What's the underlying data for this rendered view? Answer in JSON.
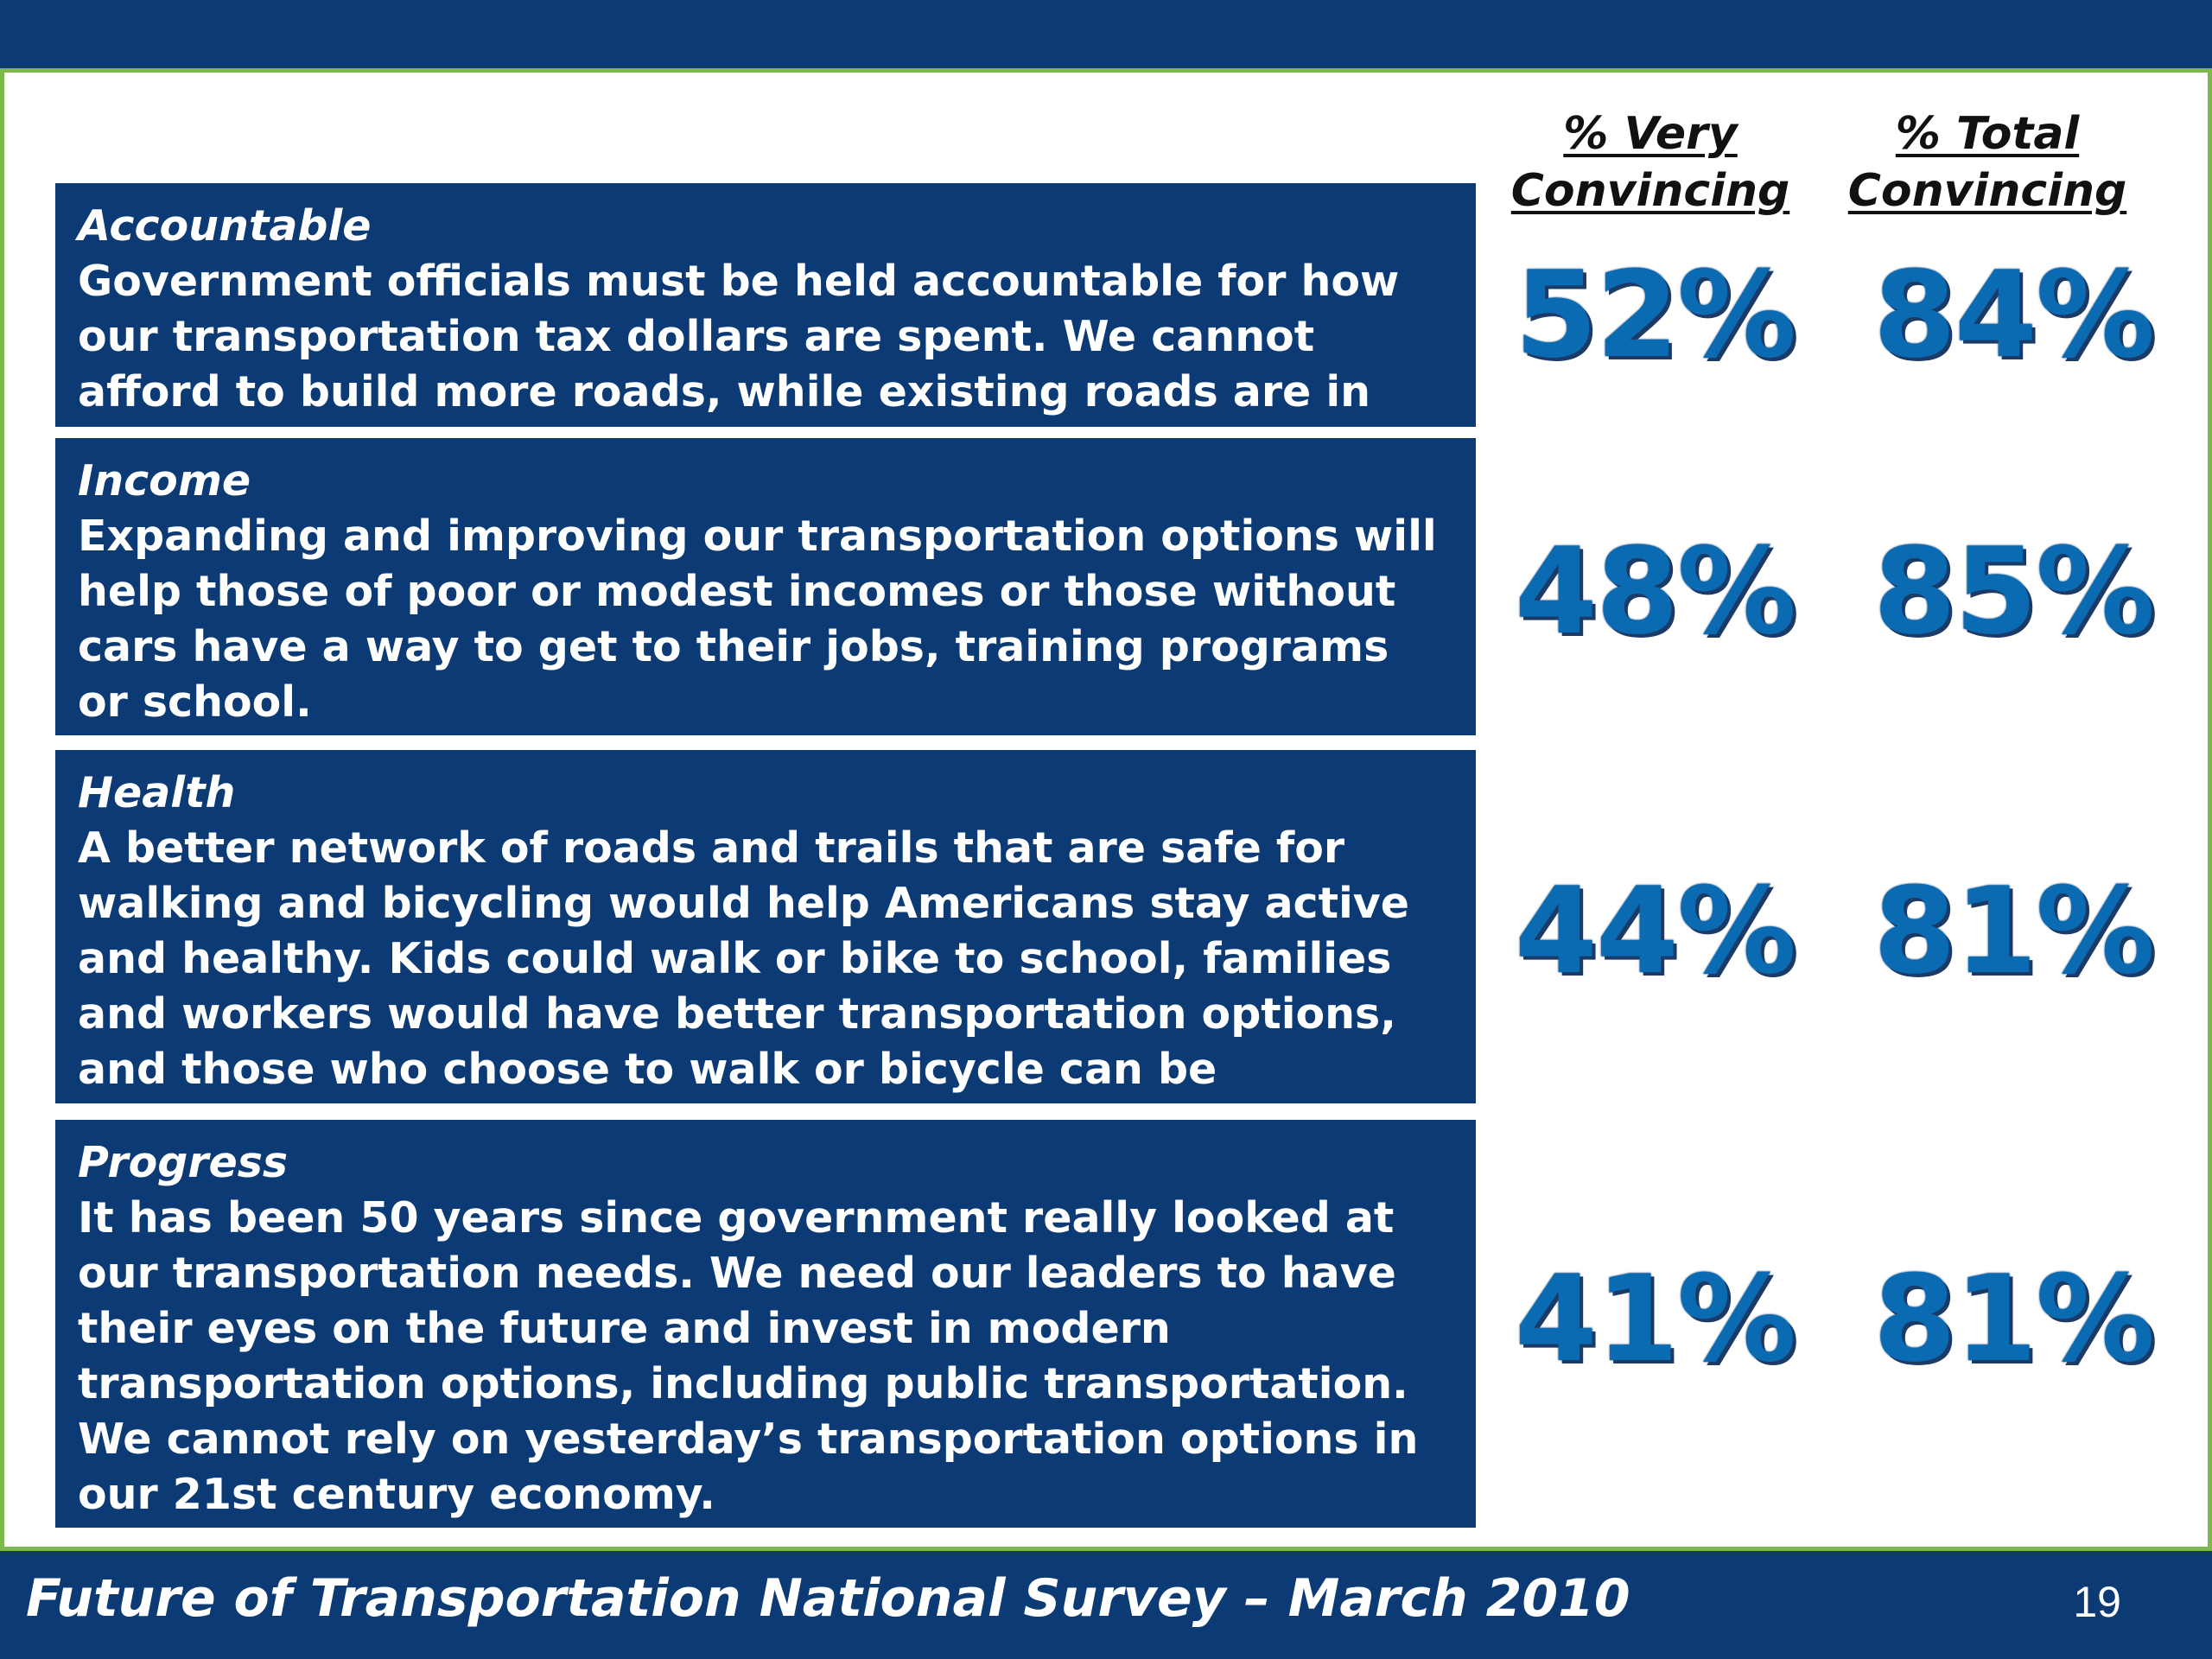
{
  "header": {
    "col_very_line1": "% Very",
    "col_very_line2": "Convincing",
    "col_total_line1": "% Total",
    "col_total_line2": "Convincing"
  },
  "items": [
    {
      "title": "Accountable",
      "text": "Government officials must be held accountable for how our transportation tax dollars are spent. We cannot afford to build more roads, while existing roads are in disrepair.",
      "very": "52%",
      "total": "84%"
    },
    {
      "title": "Income",
      "text": "Expanding and improving our transportation options will help those of poor or modest incomes or those without cars have a way to get to their jobs, training programs or school.",
      "very": "48%",
      "total": "85%"
    },
    {
      "title": "Health",
      "text": "A better network of roads and trails that are safe for walking and bicycling would help Americans stay active and healthy. Kids could walk or bike to school, families and workers would have better transportation options, and those who choose to walk or bicycle can be healthier.",
      "very": "44%",
      "total": "81%"
    },
    {
      "title": "Progress",
      "text": "It has been 50 years since government really looked at our transportation needs. We need our leaders to have their eyes on the future and invest in modern transportation options, including public transportation. We cannot rely on yesterday’s transportation options in our 21st century economy.",
      "very": "41%",
      "total": "81%"
    }
  ],
  "footer": {
    "title": "Future of Transportation National Survey – March 2010",
    "page_number": "19"
  },
  "colors": {
    "navy": "#0c3a74",
    "accent_green": "#7db84a",
    "percent_blue": "#0a6ab2"
  }
}
